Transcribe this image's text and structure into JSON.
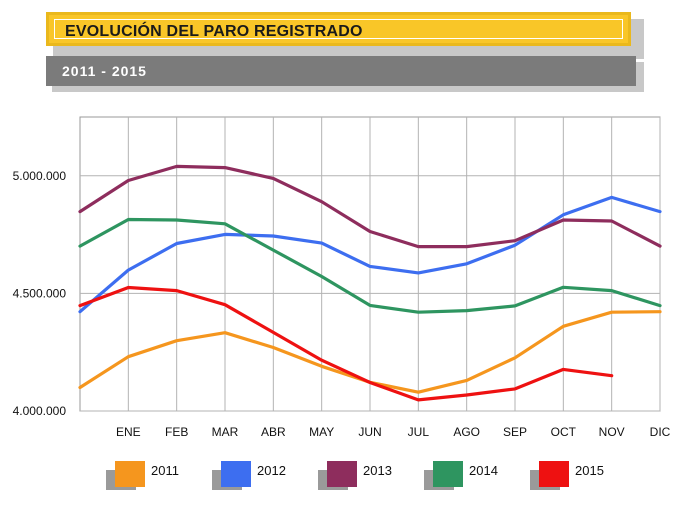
{
  "header": {
    "title": "EVOLUCIÓN DEL PARO REGISTRADO",
    "subtitle": "2011 - 2015"
  },
  "chart_data": {
    "type": "line",
    "title": "EVOLUCIÓN DEL PARO REGISTRADO",
    "subtitle": "2011 - 2015",
    "x_categories": [
      "",
      "ENE",
      "FEB",
      "MAR",
      "ABR",
      "MAY",
      "JUN",
      "JUL",
      "AGO",
      "SEP",
      "OCT",
      "NOV",
      "DIC"
    ],
    "y_ticks": [
      {
        "value": 4000000,
        "label": "4.000.000"
      },
      {
        "value": 4500000,
        "label": "4.500.000"
      },
      {
        "value": 5000000,
        "label": "5.000.000"
      }
    ],
    "ylim": [
      4000000,
      5250000
    ],
    "grid": true,
    "legend_position": "bottom",
    "series": [
      {
        "name": "2011",
        "color": "#f5961e",
        "values": [
          4100000,
          4231000,
          4299000,
          4333000,
          4270000,
          4190000,
          4122000,
          4080000,
          4130000,
          4226000,
          4360000,
          4420000,
          4422000
        ]
      },
      {
        "name": "2012",
        "color": "#3d6ef0",
        "values": [
          4422000,
          4599000,
          4712000,
          4751000,
          4744000,
          4714000,
          4615000,
          4587000,
          4626000,
          4705000,
          4834000,
          4908000,
          4848000
        ]
      },
      {
        "name": "2013",
        "color": "#8e2d5d",
        "values": [
          4848000,
          4980000,
          5040000,
          5035000,
          4989000,
          4890000,
          4763000,
          4699000,
          4699000,
          4724000,
          4812000,
          4808000,
          4701000
        ]
      },
      {
        "name": "2014",
        "color": "#2e9560",
        "values": [
          4701000,
          4814000,
          4812000,
          4796000,
          4684000,
          4572000,
          4449000,
          4420000,
          4427000,
          4447000,
          4526000,
          4512000,
          4448000
        ]
      },
      {
        "name": "2015",
        "color": "#ee1111",
        "values": [
          4448000,
          4525000,
          4512000,
          4452000,
          4334000,
          4216000,
          4121000,
          4047000,
          4068000,
          4094000,
          4177000,
          4150000,
          null
        ]
      }
    ]
  }
}
